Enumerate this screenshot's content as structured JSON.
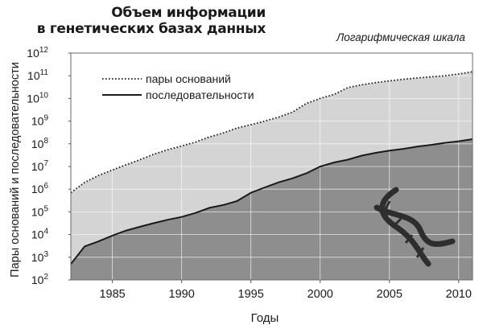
{
  "chart_data": {
    "type": "area",
    "title": [
      "Объем информации",
      "в генетических базах данных"
    ],
    "scale_note": "Логарифмическая шкала",
    "xlabel": "Годы",
    "ylabel": "Пары оснований и последовательности",
    "y_scale": "log",
    "ylim": [
      100,
      1000000000000
    ],
    "xlim": [
      1982,
      2011
    ],
    "grid": true,
    "legend_position": "top-left",
    "x_ticks": [
      "1985",
      "1990",
      "1995",
      "2000",
      "2005",
      "2010"
    ],
    "y_ticks": [
      {
        "base": "10",
        "exp": "2"
      },
      {
        "base": "10",
        "exp": "3"
      },
      {
        "base": "10",
        "exp": "4"
      },
      {
        "base": "10",
        "exp": "5"
      },
      {
        "base": "10",
        "exp": "6"
      },
      {
        "base": "10",
        "exp": "7"
      },
      {
        "base": "10",
        "exp": "8"
      },
      {
        "base": "10",
        "exp": "9"
      },
      {
        "base": "10",
        "exp": "10"
      },
      {
        "base": "10",
        "exp": "11"
      },
      {
        "base": "10",
        "exp": "12"
      }
    ],
    "series": [
      {
        "name": "пары оснований",
        "style": "dotted",
        "fill": "#d4d4d4",
        "x": [
          1982,
          1983,
          1984,
          1985,
          1986,
          1987,
          1988,
          1989,
          1990,
          1991,
          1992,
          1993,
          1994,
          1995,
          1996,
          1997,
          1998,
          1999,
          2000,
          2001,
          2002,
          2003,
          2004,
          2005,
          2006,
          2007,
          2008,
          2009,
          2010,
          2011
        ],
        "values": [
          700000,
          2000000,
          4000000,
          7000000,
          12000000,
          20000000,
          35000000,
          55000000,
          80000000,
          120000000,
          200000000,
          300000000,
          500000000,
          700000000,
          1000000000,
          1500000000,
          2500000000,
          6000000000,
          10000000000,
          15000000000,
          30000000000,
          40000000000,
          50000000000,
          60000000000,
          70000000000,
          80000000000,
          90000000000,
          100000000000,
          120000000000,
          150000000000
        ]
      },
      {
        "name": "последовательности",
        "style": "solid",
        "fill": "#8e8e8e",
        "x": [
          1982,
          1983,
          1984,
          1985,
          1986,
          1987,
          1988,
          1989,
          1990,
          1991,
          1992,
          1993,
          1994,
          1995,
          1996,
          1997,
          1998,
          1999,
          2000,
          2001,
          2002,
          2003,
          2004,
          2005,
          2006,
          2007,
          2008,
          2009,
          2010,
          2011
        ],
        "values": [
          500,
          3000,
          5000,
          9000,
          15000,
          22000,
          32000,
          45000,
          60000,
          90000,
          150000,
          200000,
          300000,
          700000,
          1200000,
          2000000,
          3000000,
          5000000,
          10000000,
          15000000,
          20000000,
          30000000,
          40000000,
          50000000,
          60000000,
          75000000,
          90000000,
          110000000,
          130000000,
          160000000
        ]
      }
    ],
    "colors": {
      "background": "#ffffff",
      "upper_fill": "#d4d4d4",
      "lower_fill": "#8e8e8e",
      "line": "#1a1a1a",
      "grid": "#ffffff",
      "dna_icon": "#2e2e2e"
    },
    "icons": [
      "dna-helix-icon"
    ]
  }
}
